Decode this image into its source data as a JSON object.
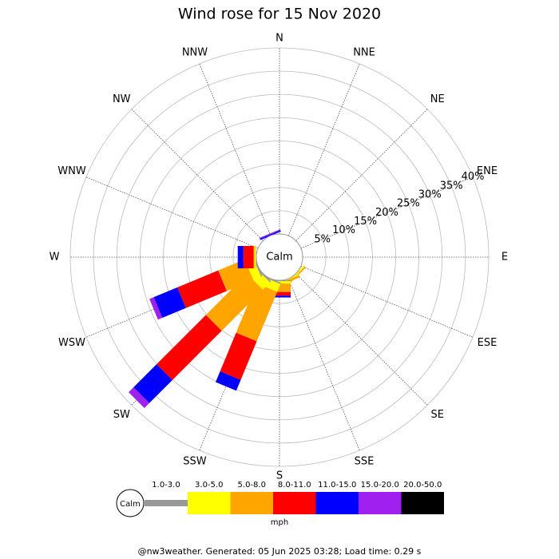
{
  "chart_data": {
    "type": "windrose",
    "title": "Wind rose for 15 Nov 2020",
    "directions": [
      "N",
      "NNE",
      "NE",
      "ENE",
      "E",
      "ESE",
      "SE",
      "SSE",
      "S",
      "SSW",
      "SW",
      "WSW",
      "W",
      "WNW",
      "NW",
      "NNW"
    ],
    "series": [
      {
        "name": "1.0-3.0",
        "color": "#999999",
        "values": [
          0,
          0,
          0,
          0,
          0,
          0,
          0,
          0,
          0.2,
          0.3,
          0.3,
          0.3,
          0.1,
          0,
          0,
          0
        ]
      },
      {
        "name": "3.0-5.0",
        "color": "#ffff00",
        "values": [
          0,
          0,
          0,
          0,
          0,
          0,
          0.3,
          0.2,
          0.5,
          1.8,
          2.2,
          1.8,
          0.3,
          0,
          0,
          0
        ]
      },
      {
        "name": "5.0-8.0",
        "color": "#ffa500",
        "values": [
          0,
          0,
          0,
          0,
          0,
          0,
          0.3,
          0.5,
          1.8,
          11.5,
          12.5,
          6.2,
          0.2,
          0,
          0,
          0
        ]
      },
      {
        "name": "8.0-11.0",
        "color": "#ff0000",
        "values": [
          0,
          0,
          0,
          0,
          0,
          0,
          0,
          0,
          0.8,
          9,
          15,
          9.5,
          2.2,
          0,
          0,
          0
        ]
      },
      {
        "name": "11.0-15.0",
        "color": "#0000ff",
        "values": [
          0,
          0,
          0,
          0,
          0,
          0,
          0,
          0,
          0.4,
          2.5,
          7,
          5.5,
          1.2,
          0,
          0,
          0.3
        ]
      },
      {
        "name": "15.0-20.0",
        "color": "#a020f0",
        "values": [
          0,
          0,
          0,
          0,
          0,
          0,
          0,
          0,
          0,
          0,
          1.5,
          1,
          0,
          0,
          0,
          0.2
        ]
      },
      {
        "name": "20.0-50.0",
        "color": "#000000",
        "values": [
          0,
          0,
          0,
          0,
          0,
          0,
          0,
          0,
          0,
          0,
          0,
          0,
          0,
          0,
          0,
          0
        ]
      }
    ],
    "rlim": [
      0,
      40
    ],
    "rticks": [
      {
        "value": 5,
        "label": "5%"
      },
      {
        "value": 10,
        "label": "10%"
      },
      {
        "value": 15,
        "label": "15%"
      },
      {
        "value": 20,
        "label": "20%"
      },
      {
        "value": 25,
        "label": "25%"
      },
      {
        "value": 30,
        "label": "30%"
      },
      {
        "value": 35,
        "label": "35%"
      },
      {
        "value": 40,
        "label": "40%"
      }
    ],
    "calm_label": "Calm",
    "unit": "mph",
    "footer": "@nw3weather. Generated: 05 Jun 2025 03:28; Load time: 0.29 s"
  }
}
